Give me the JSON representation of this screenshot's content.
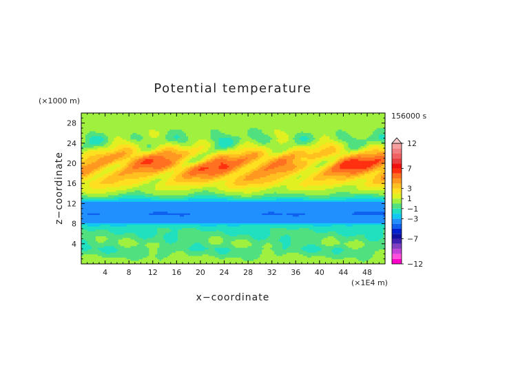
{
  "chart_data": {
    "type": "heatmap",
    "title": "Potential temperature",
    "xlabel": "x−coordinate",
    "ylabel": "z−coordinate",
    "x_unit": "(×1E4 m)",
    "y_unit": "(×1000 m)",
    "time_label": "156000 s",
    "xlim": [
      0,
      51
    ],
    "ylim": [
      0,
      30
    ],
    "x_ticks": [
      4,
      8,
      12,
      16,
      20,
      24,
      28,
      32,
      36,
      40,
      44,
      48
    ],
    "y_ticks": [
      4,
      8,
      12,
      16,
      20,
      24,
      28
    ],
    "x_tick_labels": [
      "4",
      "8",
      "12",
      "16",
      "20",
      "24",
      "28",
      "32",
      "36",
      "40",
      "44",
      "48"
    ],
    "y_tick_labels": [
      "4",
      "8",
      "12",
      "16",
      "20",
      "24",
      "28"
    ],
    "colorbar": {
      "levels": [
        -12,
        -11,
        -10,
        -9,
        -8,
        -7,
        -6,
        -5,
        -4,
        -3,
        -2,
        -1,
        0,
        1,
        2,
        3,
        4,
        5,
        6,
        7,
        8,
        9,
        10,
        11,
        12
      ],
      "colors": [
        "#ff00c8",
        "#ff4fdc",
        "#c040d8",
        "#8040c0",
        "#4020b0",
        "#1010a0",
        "#0020d0",
        "#1060f0",
        "#2090ff",
        "#10c8f0",
        "#20e0c0",
        "#50e080",
        "#a0f040",
        "#e0f020",
        "#ffe020",
        "#ffc020",
        "#ff9820",
        "#ff7020",
        "#ff3010",
        "#f01010",
        "#e84040",
        "#f06060",
        "#f08080",
        "#f8a0a0"
      ],
      "tick_values": [
        12,
        7,
        3,
        1,
        -1,
        -3,
        -7,
        -12
      ],
      "tick_labels": [
        "12",
        "7",
        "3",
        "1",
        "−1",
        "−3",
        "−7",
        "−12"
      ]
    },
    "field_profile": {
      "z": [
        0,
        1,
        2,
        3,
        4,
        5,
        6,
        7,
        7.8,
        8.2,
        8.8,
        10,
        11,
        12,
        12.6,
        13.2,
        14,
        15,
        16,
        17,
        18,
        19,
        20,
        21,
        22,
        23,
        24,
        25,
        26,
        28,
        30
      ],
      "theta": [
        0.4,
        0.3,
        -0.3,
        -0.8,
        -0.2,
        -0.5,
        -0.9,
        -1.2,
        -2.0,
        -3.2,
        -3.8,
        -4.0,
        -3.9,
        -3.6,
        -2.6,
        -1.2,
        0.2,
        1.2,
        2.3,
        3.0,
        3.8,
        4.4,
        4.6,
        3.8,
        2.6,
        1.4,
        0.4,
        -0.1,
        0.3,
        0.6,
        0.4
      ]
    }
  }
}
